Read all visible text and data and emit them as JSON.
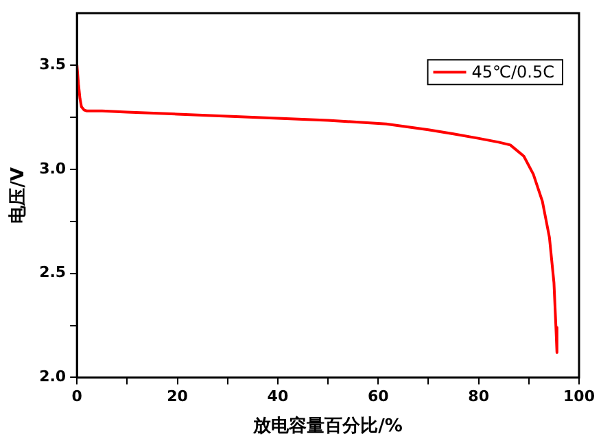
{
  "chart_data": {
    "type": "line",
    "xlabel": "放电容量百分比/%",
    "ylabel": "电压/V",
    "xlim": [
      0,
      100
    ],
    "ylim": [
      2.0,
      3.75
    ],
    "xticks": [
      0,
      {
        "value": 10,
        "label": null
      },
      20,
      {
        "value": 30,
        "label": null
      },
      40,
      {
        "value": 50,
        "label": null
      },
      60,
      {
        "value": 70,
        "label": null
      },
      80,
      {
        "value": 90,
        "label": null
      },
      100
    ],
    "yticks": [
      {
        "value": 2.0,
        "label": "2.0"
      },
      {
        "value": 2.25,
        "label": null
      },
      2.5,
      {
        "value": 2.75,
        "label": null
      },
      {
        "value": 3.0,
        "label": "3.0"
      },
      {
        "value": 3.25,
        "label": null
      },
      3.5
    ],
    "grid": false,
    "legend": "top right",
    "marker": "none",
    "line_style": "solid",
    "series": [
      {
        "name": "45℃/0.5C",
        "color": "#ff0000",
        "x": [
          0,
          0.3,
          0.6,
          0.9,
          1.4,
          2,
          5,
          10,
          20,
          30,
          40,
          50,
          61.6,
          70,
          75,
          79.9,
          84,
          86.3,
          89.0,
          90.9,
          92.7,
          94.1,
          95.0,
          95.4,
          95.6
        ],
        "values": [
          3.5,
          3.41,
          3.34,
          3.3,
          3.285,
          3.28,
          3.28,
          3.275,
          3.265,
          3.255,
          3.245,
          3.235,
          3.218,
          3.19,
          3.17,
          3.149,
          3.13,
          3.117,
          3.063,
          2.976,
          2.846,
          2.673,
          2.456,
          2.24,
          2.12
        ]
      }
    ]
  }
}
